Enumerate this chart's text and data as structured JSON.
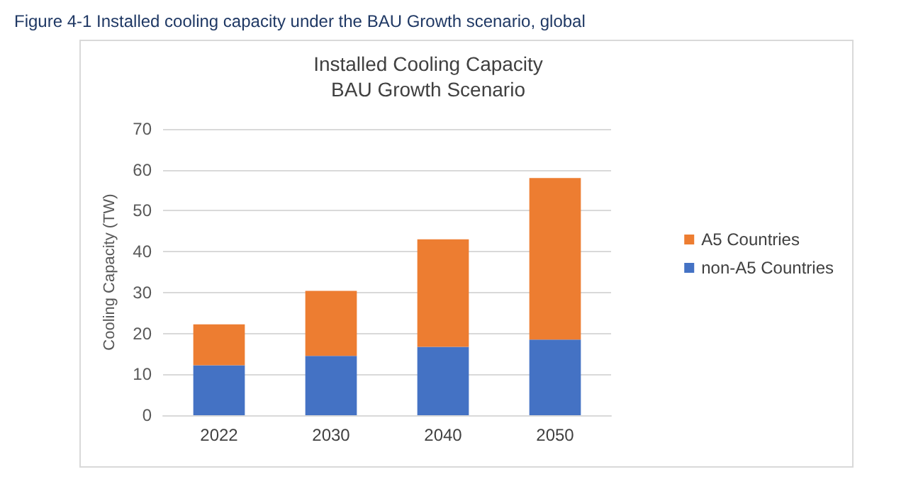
{
  "chart_data": {
    "type": "bar",
    "title": "Installed Cooling Capacity",
    "subtitle": "BAU Growth Scenario",
    "ylabel": "Cooling Capacity (TW)",
    "annotations": [
      "Figure 4-1 Installed cooling capacity under the BAU Growth scenario, global"
    ],
    "categories": [
      "2022",
      "2030",
      "2040",
      "2050"
    ],
    "stacked": true,
    "series": [
      {
        "name": "non-A5 Countries",
        "color": "#4472c4",
        "values": [
          12.2,
          14.5,
          16.7,
          18.5
        ]
      },
      {
        "name": "A5 Countries",
        "color": "#ed7d31",
        "values": [
          10,
          15.9,
          26.3,
          39.5
        ]
      }
    ],
    "ylim": [
      0,
      70
    ],
    "yticks": [
      0,
      10,
      20,
      30,
      40,
      50,
      60,
      70
    ],
    "grid": "y",
    "legend": "right"
  }
}
